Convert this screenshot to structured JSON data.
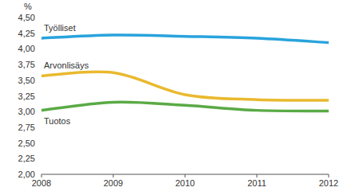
{
  "chart_data": {
    "type": "line",
    "y_label": "%",
    "x": [
      2008,
      2009,
      2010,
      2011,
      2012
    ],
    "xlim": [
      2008,
      2012
    ],
    "xticks": [
      2008,
      2009,
      2010,
      2011,
      2012
    ],
    "ylim": [
      2.0,
      4.5
    ],
    "yticks": [
      {
        "value": 2.0,
        "label": "2,00"
      },
      {
        "value": 2.25,
        "label": "2,25"
      },
      {
        "value": 2.5,
        "label": "2,50"
      },
      {
        "value": 2.75,
        "label": "2,75"
      },
      {
        "value": 3.0,
        "label": "3,00"
      },
      {
        "value": 3.25,
        "label": "3,25"
      },
      {
        "value": 3.5,
        "label": "3,50"
      },
      {
        "value": 3.75,
        "label": "3,75"
      },
      {
        "value": 4.0,
        "label": "4,00"
      },
      {
        "value": 4.25,
        "label": "4,25"
      },
      {
        "value": 4.5,
        "label": "4,50"
      }
    ],
    "grid": false,
    "series": [
      {
        "name": "Työlliset",
        "color": "#29a3dc",
        "values": [
          4.17,
          4.22,
          4.2,
          4.17,
          4.1
        ]
      },
      {
        "name": "Arvonlisäys",
        "color": "#e9b92f",
        "values": [
          3.57,
          3.62,
          3.27,
          3.19,
          3.18
        ]
      },
      {
        "name": "Tuotos",
        "color": "#5aaa45",
        "values": [
          3.02,
          3.15,
          3.1,
          3.02,
          3.01
        ]
      }
    ]
  }
}
